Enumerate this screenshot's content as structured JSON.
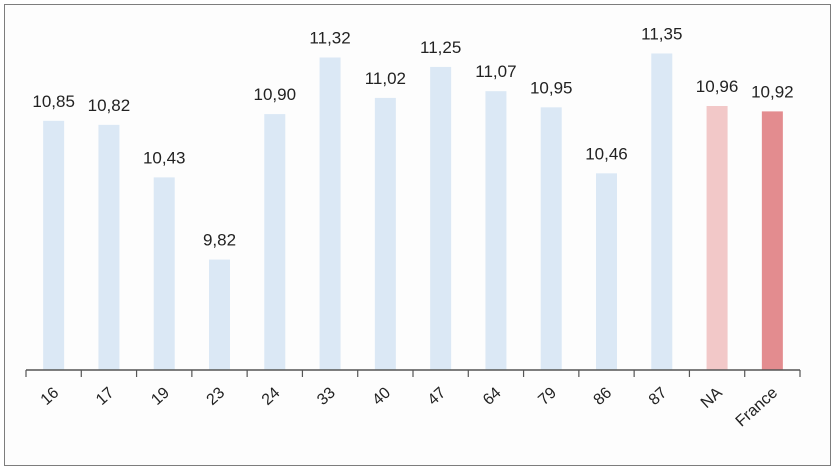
{
  "chart_data": {
    "type": "bar",
    "title": "",
    "xlabel": "",
    "ylabel": "",
    "categories": [
      "16",
      "17",
      "19",
      "23",
      "24",
      "33",
      "40",
      "47",
      "64",
      "79",
      "86",
      "87",
      "NA",
      "France"
    ],
    "labels": [
      "10,85",
      "10,82",
      "10,43",
      "9,82",
      "10,90",
      "11,32",
      "11,02",
      "11,25",
      "11,07",
      "10,95",
      "10,46",
      "11,35",
      "10,96",
      "10,92"
    ],
    "values": [
      10.85,
      10.82,
      10.43,
      9.82,
      10.9,
      11.32,
      11.02,
      11.25,
      11.07,
      10.95,
      10.46,
      11.35,
      10.96,
      10.92
    ],
    "ylim": [
      9.0,
      11.45
    ],
    "grid": false,
    "legend": "none",
    "colors": {
      "default": "#dbe8f5",
      "NA": "#f2c8c8",
      "France": "#e38c8f",
      "axis": "#555555"
    }
  }
}
